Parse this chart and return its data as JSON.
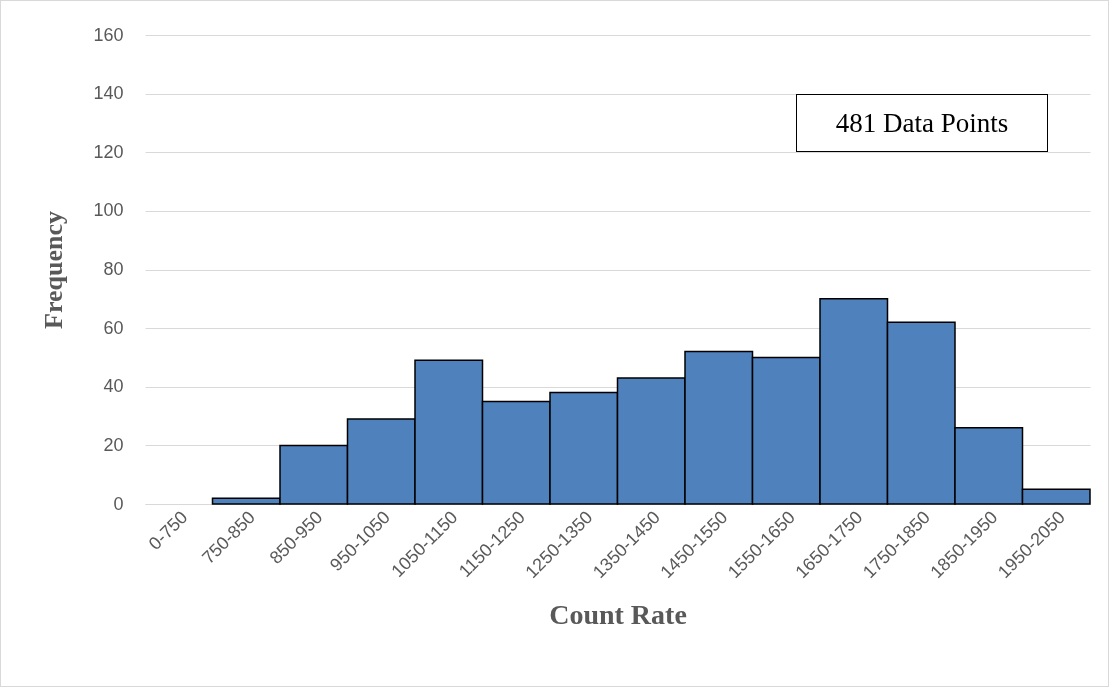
{
  "chart_data": {
    "type": "bar",
    "xlabel": "Count Rate",
    "ylabel": "Frequency",
    "categories": [
      "0-750",
      "750-850",
      "850-950",
      "950-1050",
      "1050-1150",
      "1150-1250",
      "1250-1350",
      "1350-1450",
      "1450-1550",
      "1550-1650",
      "1650-1750",
      "1750-1850",
      "1850-1950",
      "1950-2050"
    ],
    "values": [
      0,
      2,
      20,
      29,
      49,
      35,
      38,
      43,
      52,
      50,
      70,
      62,
      26,
      5
    ],
    "color": "#4f81bd",
    "ylim": [
      0,
      160
    ],
    "yticks": [
      0,
      20,
      40,
      60,
      80,
      100,
      120,
      140,
      160
    ],
    "grid": "y",
    "annotations": [
      "481 Data Points"
    ]
  }
}
